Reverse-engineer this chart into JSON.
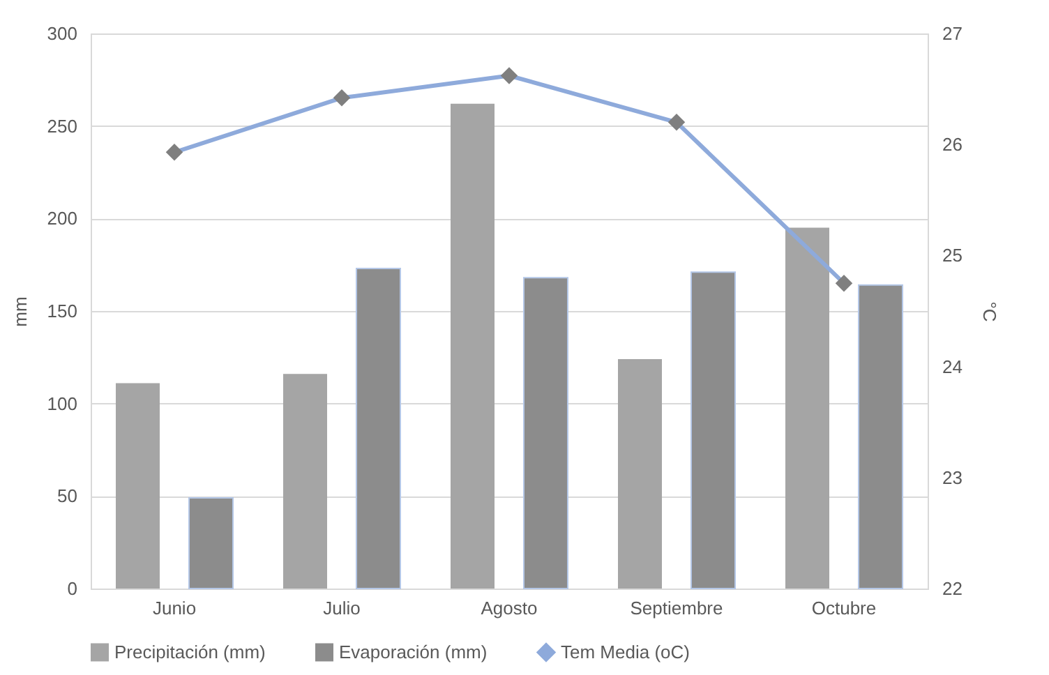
{
  "chart_data": {
    "type": "bar",
    "ylabel": "mm",
    "y2label": "°C",
    "categories": [
      "Junio",
      "Julio",
      "Agosto",
      "Septiembre",
      "Octubre"
    ],
    "series": [
      {
        "name": "Precipitación (mm)",
        "color": "#a5a5a5",
        "values": [
          111,
          116,
          262,
          124,
          195
        ]
      },
      {
        "name": "Evaporación (mm)",
        "color": "#8c8c8c",
        "values": [
          49,
          173,
          168,
          171,
          164
        ]
      },
      {
        "name": "Tem Media (oC)",
        "type": "line",
        "axis": "y2",
        "color": "#8eaadb",
        "marker": "diamond",
        "values": [
          25.93,
          26.42,
          26.62,
          26.2,
          24.75
        ]
      }
    ],
    "ylim": [
      0,
      300
    ],
    "yticks": [
      0,
      50,
      100,
      150,
      200,
      250,
      300
    ],
    "y2lim": [
      22,
      27
    ],
    "y2ticks": [
      22,
      23,
      24,
      25,
      26,
      27
    ],
    "grid": "y",
    "legend": "bottom"
  }
}
